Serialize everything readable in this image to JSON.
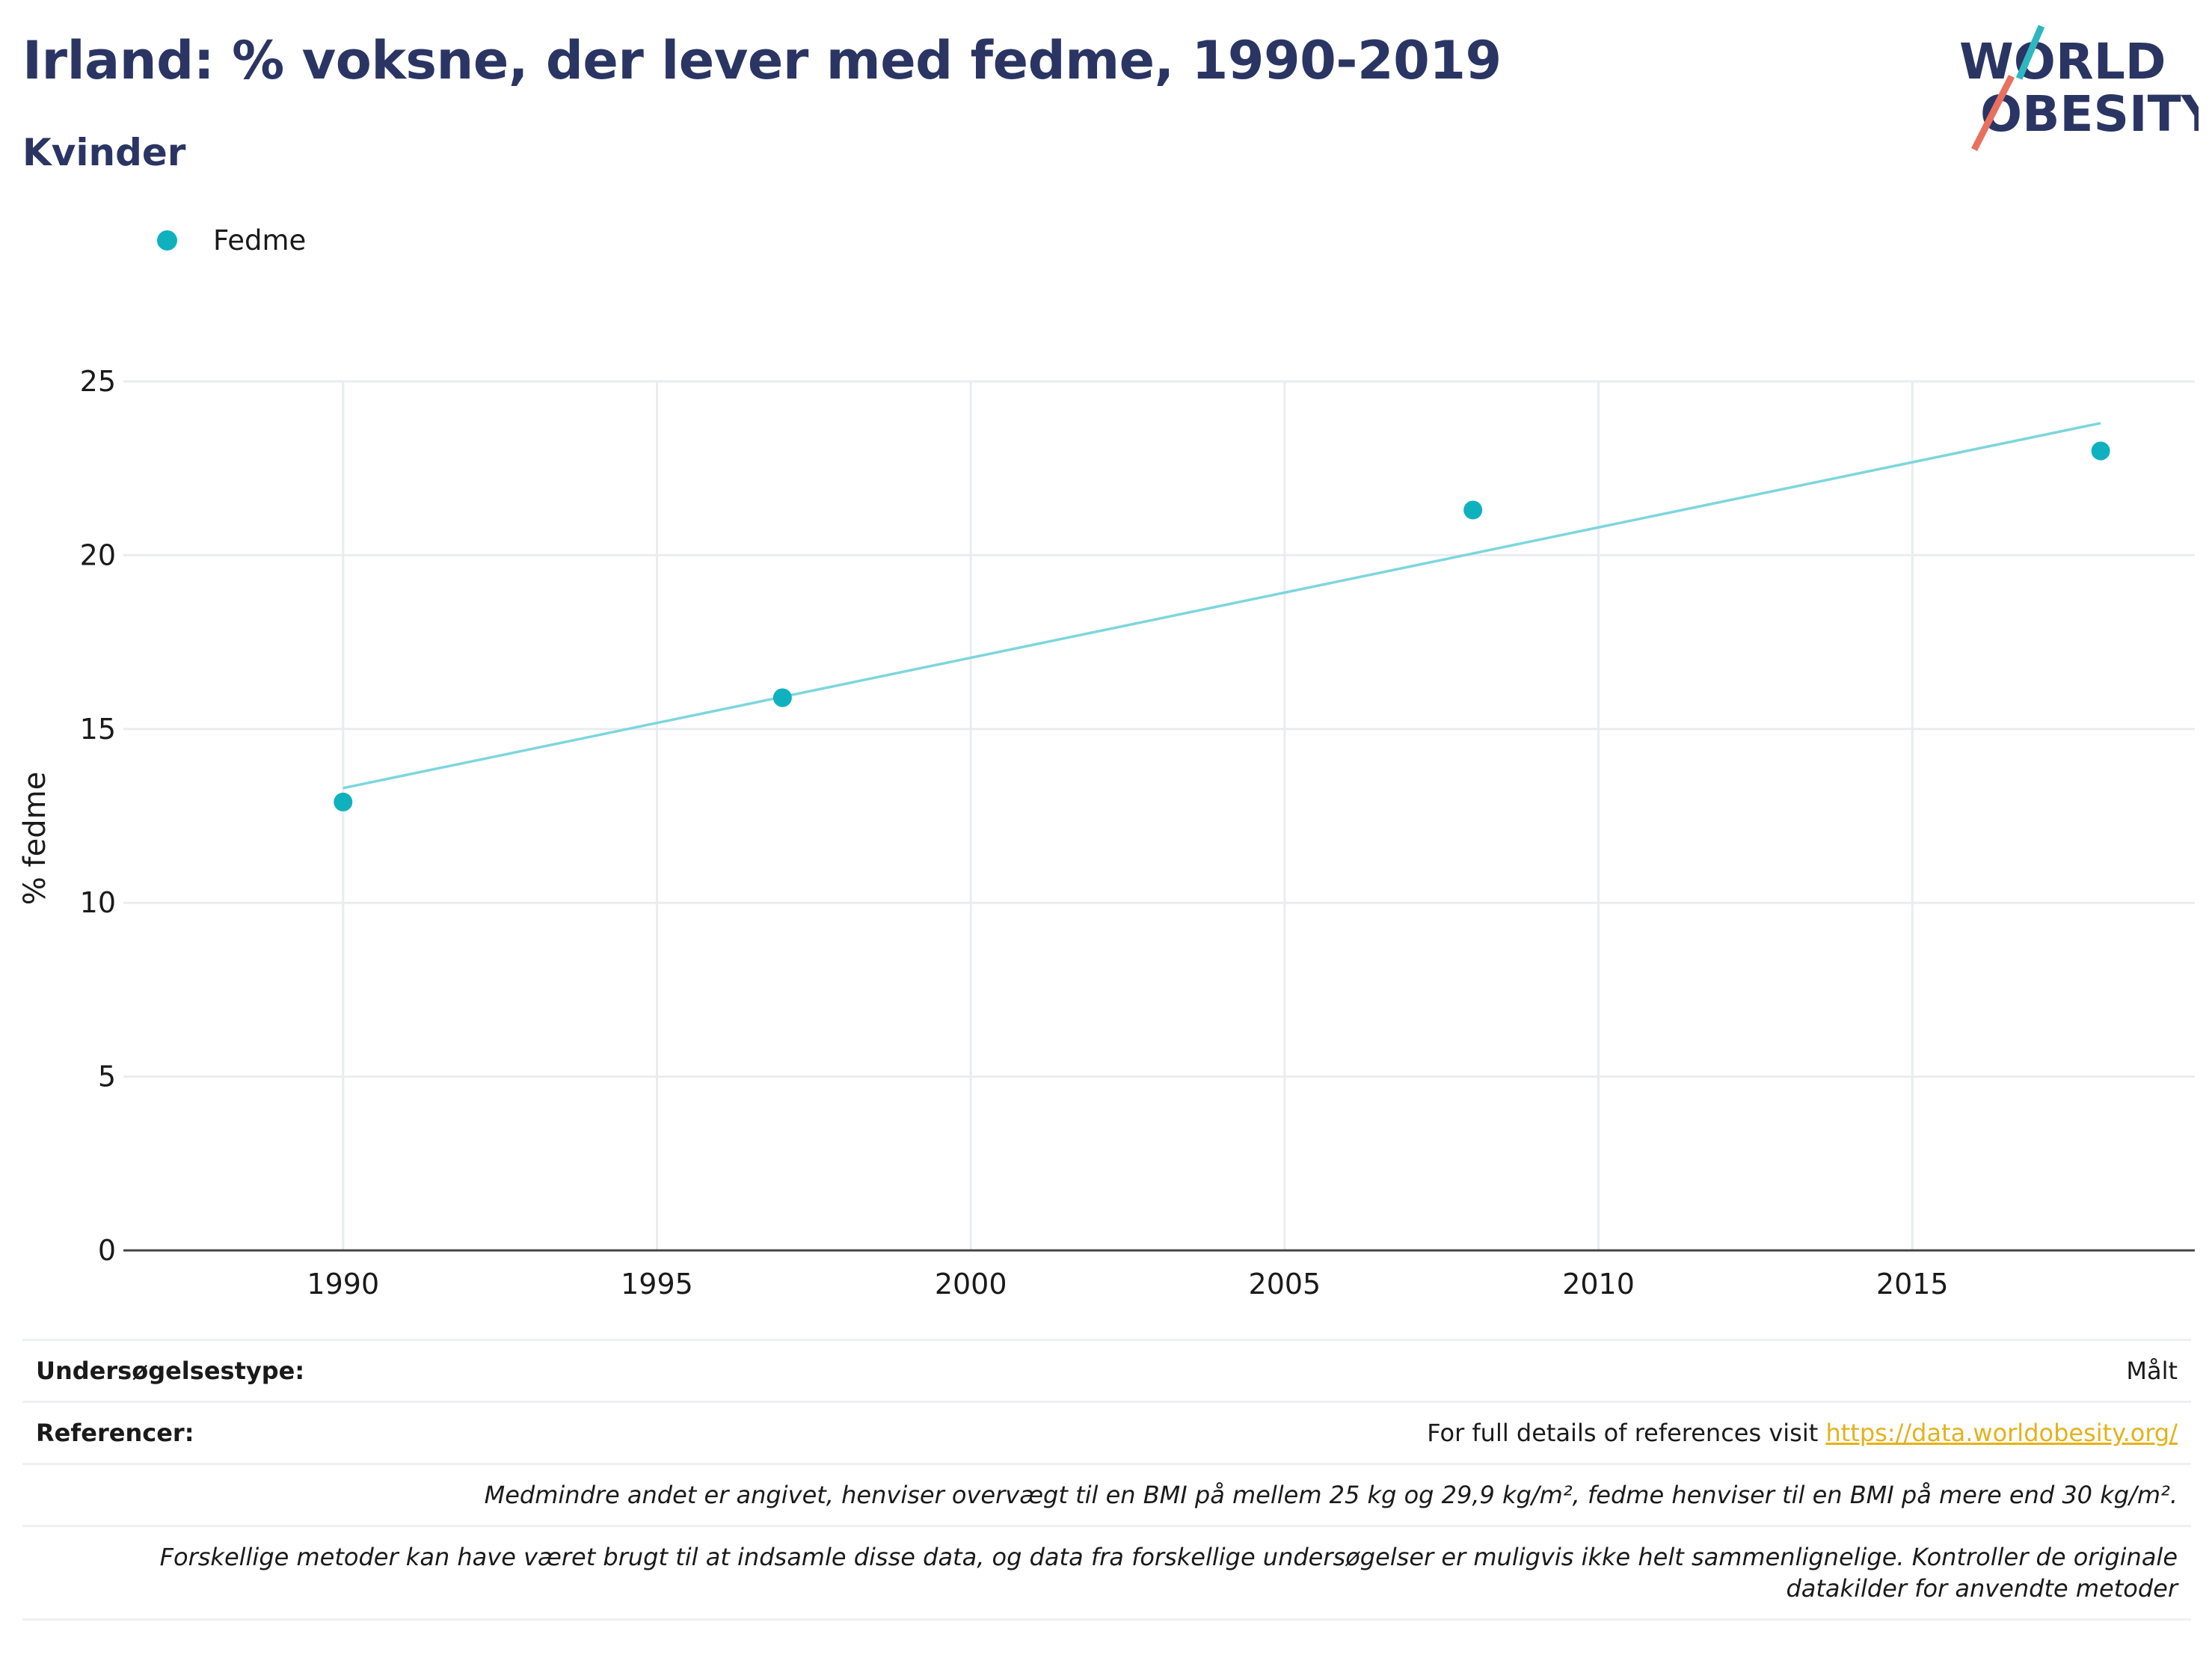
{
  "title": "Irland: % voksne, der lever med fedme, 1990-2019",
  "subtitle": "Kvinder",
  "logo": {
    "line1": "WORLD",
    "line2": "OBESITY",
    "colors": {
      "navy": "#2a3563",
      "teal": "#2fb7c0",
      "red": "#e8705f"
    }
  },
  "legend": {
    "label": "Fedme",
    "color": "#0fb1be"
  },
  "chart_data": {
    "type": "scatter",
    "ylabel": "% fedme",
    "xlim": [
      1986.5,
      2019.5
    ],
    "ylim": [
      0,
      25
    ],
    "x_ticks": [
      1990,
      1995,
      2000,
      2005,
      2010,
      2015
    ],
    "y_ticks": [
      0,
      5,
      10,
      15,
      20,
      25
    ],
    "grid": true,
    "legend_position": "top-left",
    "series": [
      {
        "name": "Fedme",
        "color": "#0fb1be",
        "points": [
          {
            "x": 1990,
            "y": 12.9
          },
          {
            "x": 1997,
            "y": 15.9
          },
          {
            "x": 2008,
            "y": 21.3
          },
          {
            "x": 2018,
            "y": 23.0
          }
        ]
      }
    ],
    "trendline": {
      "color": "#7dd6dc",
      "start": {
        "x": 1990,
        "y": 13.3
      },
      "end": {
        "x": 2018,
        "y": 23.8
      }
    }
  },
  "info": {
    "survey_label": "Undersøgelsestype:",
    "survey_value": "Målt",
    "refs_label": "Referencer:",
    "refs_text": "For full details of references visit ",
    "refs_link": "https://data.worldobesity.org/",
    "note1": "Medmindre andet er angivet, henviser overvægt til en BMI på mellem 25 kg og 29,9 kg/m², fedme henviser til en BMI på mere end 30 kg/m².",
    "note2": "Forskellige metoder kan have været brugt til at indsamle disse data, og data fra forskellige undersøgelser er muligvis ikke helt sammenlignelige. Kontroller de originale datakilder for anvendte metoder"
  }
}
